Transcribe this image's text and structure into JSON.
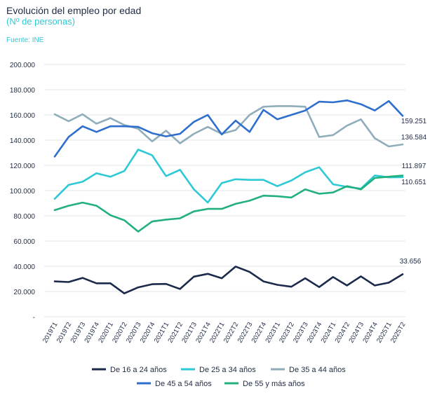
{
  "chart_data": {
    "type": "line",
    "title": "Evolución del empleo por edad",
    "subtitle": "(Nº de personas)",
    "source": "Fuente: INE",
    "categories": [
      "2019T1",
      "2019T2",
      "2019T3",
      "2019T4",
      "2020T1",
      "2020T2",
      "2020T3",
      "2020T4",
      "2021T1",
      "2021T2",
      "2021T3",
      "2021T4",
      "2022T1",
      "2022T2",
      "2022T3",
      "2022T4",
      "2023T1",
      "2023T2",
      "2023T3",
      "2023T4",
      "2024T1",
      "2024T2",
      "2024T3",
      "2024T4",
      "2025T1",
      "2025T2"
    ],
    "y_ticks": [
      "-",
      "20.000",
      "40.000",
      "60.000",
      "80.000",
      "100.000",
      "120.000",
      "140.000",
      "160.000",
      "180.000",
      "200.000"
    ],
    "ylim": [
      0,
      200000
    ],
    "grid": true,
    "legend_position": "bottom",
    "series": [
      {
        "name": "De 16 a 24 años",
        "color": "#1b2a4a",
        "values": [
          28000,
          27500,
          30800,
          26500,
          26500,
          18500,
          23300,
          25800,
          26000,
          22000,
          31800,
          34000,
          30500,
          39800,
          35500,
          28000,
          25300,
          23800,
          30500,
          23500,
          31500,
          24800,
          32000,
          24800,
          27000,
          33656
        ],
        "end_label": "33.656"
      },
      {
        "name": "De 25 a 34 años",
        "color": "#2ec9d6",
        "values": [
          93500,
          104500,
          107000,
          113800,
          111000,
          115500,
          132500,
          128000,
          111500,
          116500,
          101000,
          90500,
          106000,
          109000,
          108500,
          108500,
          103500,
          108000,
          114500,
          118500,
          105000,
          103000,
          101500,
          112000,
          110500,
          110651
        ],
        "end_label": "110.651"
      },
      {
        "name": "De 35 a 44 años",
        "color": "#8fadba",
        "values": [
          160500,
          155000,
          160500,
          153000,
          157500,
          152000,
          149000,
          139000,
          147500,
          137500,
          145000,
          150500,
          145000,
          148000,
          160000,
          166500,
          167000,
          167000,
          166500,
          142500,
          144000,
          151500,
          156500,
          141500,
          135000,
          136584
        ],
        "end_label": "136.584"
      },
      {
        "name": "De 45 a 54 años",
        "color": "#2e6fce",
        "values": [
          127000,
          142500,
          151000,
          146500,
          151000,
          151000,
          150500,
          145500,
          143000,
          145000,
          154500,
          160000,
          144500,
          155500,
          146500,
          164000,
          156500,
          160000,
          163500,
          170500,
          170000,
          171500,
          168500,
          163500,
          171000,
          159251
        ],
        "end_label": "159.251"
      },
      {
        "name": "De 55 y más años",
        "color": "#22b07d",
        "values": [
          84500,
          88000,
          90500,
          88000,
          80500,
          76500,
          67500,
          75500,
          77000,
          78000,
          83500,
          85500,
          85500,
          89500,
          92000,
          96000,
          95500,
          94500,
          101000,
          97500,
          98500,
          103500,
          101000,
          110000,
          111000,
          111897
        ],
        "end_label": "111.897"
      }
    ]
  }
}
